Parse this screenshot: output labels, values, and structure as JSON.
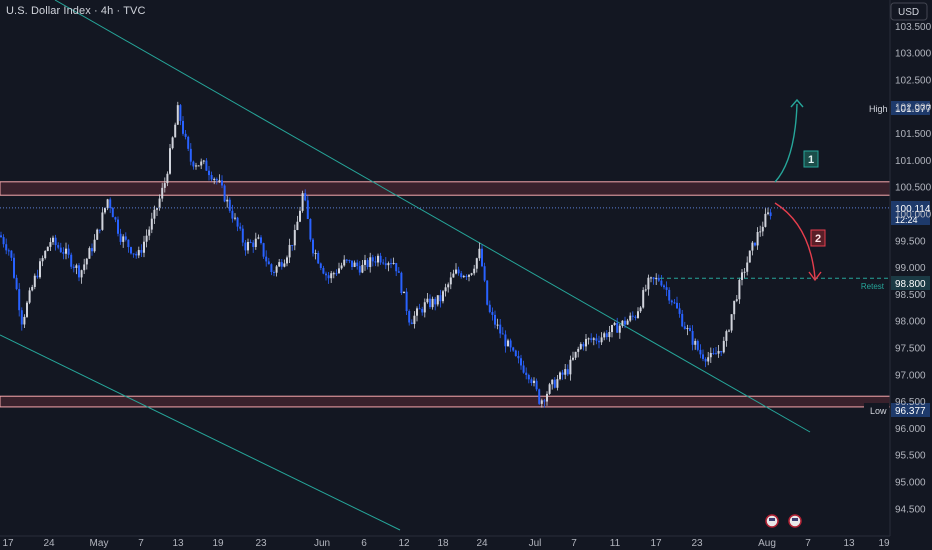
{
  "title": "U.S. Dollar Index · 4h · TVC",
  "currency": "USD",
  "price_axis": {
    "ticks": [
      "103.500",
      "103.000",
      "102.500",
      "102.000",
      "101.500",
      "101.000",
      "100.500",
      "100.000",
      "99.500",
      "99.000",
      "98.500",
      "98.000",
      "97.500",
      "97.000",
      "96.500",
      "96.000",
      "95.500",
      "95.000",
      "94.500"
    ],
    "tick_values": [
      103.5,
      103.0,
      102.5,
      102.0,
      101.5,
      101.0,
      100.5,
      100.0,
      99.5,
      99.0,
      98.5,
      98.0,
      97.5,
      97.0,
      96.5,
      96.0,
      95.5,
      95.0,
      94.5
    ]
  },
  "time_axis": {
    "ticks": [
      "17",
      "24",
      "May",
      "7",
      "13",
      "19",
      "23",
      "Jun",
      "6",
      "12",
      "18",
      "24",
      "Jul",
      "7",
      "11",
      "17",
      "23",
      "Aug",
      "7",
      "13",
      "19"
    ]
  },
  "labels": {
    "high_tag": "High",
    "high_value": "101.977",
    "low_tag": "Low",
    "low_value": "96.377",
    "current_price": "100.114",
    "countdown": "12:24",
    "retest_value": "98.800",
    "retest_text": "Retest",
    "scenario_1": "1",
    "scenario_2": "2"
  },
  "colors": {
    "background": "#131722",
    "candle_up": "#d1d4dc",
    "candle_down": "#2962ff",
    "channel": "#26a69a",
    "zone_border": "#f7a8ad",
    "zone_fill": "#5a2a35",
    "arrow_up": "#26a69a",
    "arrow_down": "#e53e4d",
    "axis_text": "#b2b5be",
    "tag_bg": "#1e3a6b"
  },
  "chart_data": {
    "type": "candlestick",
    "symbol": "U.S. Dollar Index",
    "interval": "4h",
    "source": "TVC",
    "ylim": [
      94.3,
      104.0
    ],
    "resistance_zone": [
      100.35,
      100.6
    ],
    "support_zone": [
      96.4,
      96.6
    ],
    "high": 101.977,
    "low": 96.377,
    "last_price": 100.114,
    "retest_level": 98.8,
    "approx_path": [
      {
        "date": "Apr 14",
        "price": 99.6
      },
      {
        "date": "Apr 21",
        "price": 98.0
      },
      {
        "date": "Apr 28",
        "price": 99.6
      },
      {
        "date": "May 5",
        "price": 100.3
      },
      {
        "date": "May 12",
        "price": 101.9
      },
      {
        "date": "May 15",
        "price": 100.9
      },
      {
        "date": "May 21",
        "price": 99.5
      },
      {
        "date": "May 27",
        "price": 99.0
      },
      {
        "date": "May 29",
        "price": 100.3
      },
      {
        "date": "Jun 2",
        "price": 99.2
      },
      {
        "date": "Jun 9",
        "price": 99.1
      },
      {
        "date": "Jun 13",
        "price": 98.0
      },
      {
        "date": "Jun 22",
        "price": 99.3
      },
      {
        "date": "Jun 26",
        "price": 97.5
      },
      {
        "date": "Jul 1",
        "price": 96.6
      },
      {
        "date": "Jul 9",
        "price": 97.6
      },
      {
        "date": "Jul 15",
        "price": 98.4
      },
      {
        "date": "Jul 17",
        "price": 98.9
      },
      {
        "date": "Jul 24",
        "price": 97.2
      },
      {
        "date": "Jul 28",
        "price": 98.8
      },
      {
        "date": "Aug 1",
        "price": 100.1
      }
    ]
  }
}
